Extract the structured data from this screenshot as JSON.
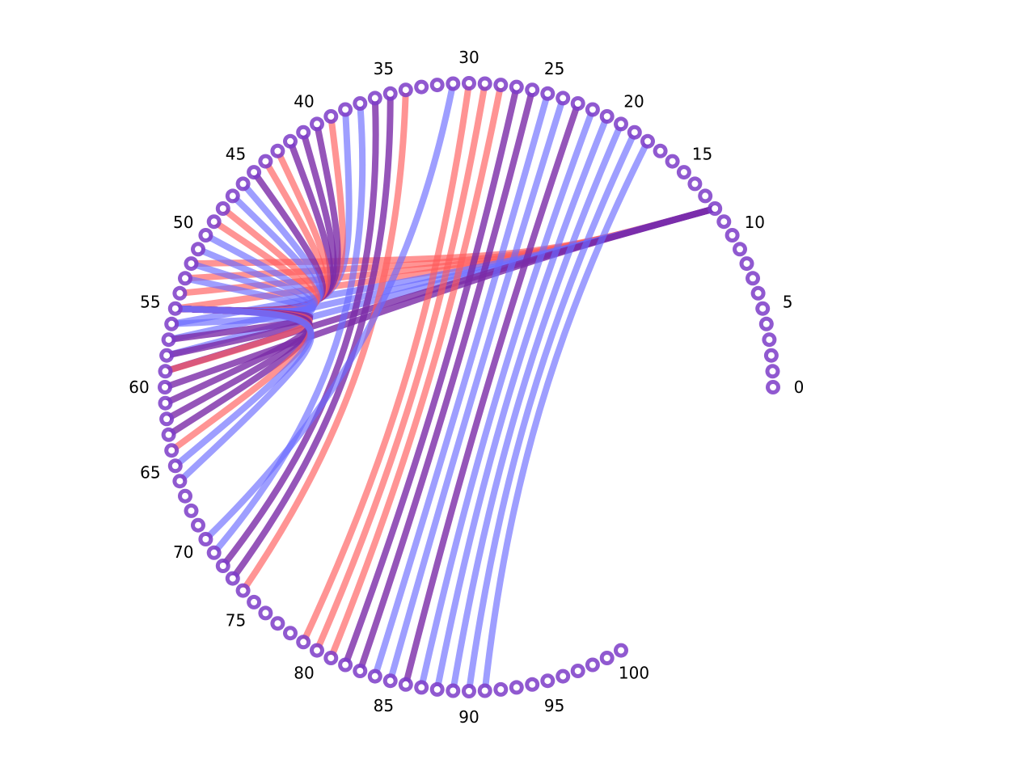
{
  "diagram": {
    "type": "arc-diagram",
    "node_count": 101,
    "tick_labels": [
      "0",
      "5",
      "10",
      "15",
      "20",
      "25",
      "30",
      "35",
      "40",
      "45",
      "50",
      "55",
      "60",
      "65",
      "70",
      "75",
      "80",
      "85",
      "90",
      "95",
      "100"
    ],
    "colors": {
      "node_ring": "#7d3cc8",
      "node_center": "#ffffff",
      "red_link": "#ff5a5a",
      "blue_link": "#6a6aff",
      "mixed_link": "#7a2aa8"
    },
    "links_from_node_12": [
      {
        "target": 52,
        "color": "red"
      },
      {
        "target": 53,
        "color": "red"
      },
      {
        "target": 54,
        "color": "red"
      },
      {
        "target": 55,
        "color": "red"
      },
      {
        "target": 56,
        "color": "blue"
      },
      {
        "target": 57,
        "color": "blue"
      },
      {
        "target": 58,
        "color": "blue"
      },
      {
        "target": 59,
        "color": "purple"
      },
      {
        "target": 60,
        "color": "purple"
      }
    ],
    "links_into_node_55": [
      {
        "source": 38,
        "color": "blue"
      },
      {
        "source": 39,
        "color": "red"
      },
      {
        "source": 40,
        "color": "purple"
      },
      {
        "source": 41,
        "color": "purple"
      },
      {
        "source": 42,
        "color": "purple"
      },
      {
        "source": 43,
        "color": "red"
      },
      {
        "source": 44,
        "color": "red"
      },
      {
        "source": 45,
        "color": "purple"
      },
      {
        "source": 46,
        "color": "blue"
      },
      {
        "source": 47,
        "color": "blue"
      },
      {
        "source": 48,
        "color": "red"
      },
      {
        "source": 49,
        "color": "red"
      },
      {
        "source": 50,
        "color": "blue"
      },
      {
        "source": 51,
        "color": "blue"
      },
      {
        "source": 52,
        "color": "blue"
      },
      {
        "source": 53,
        "color": "blue"
      },
      {
        "source": 56,
        "color": "blue"
      },
      {
        "source": 57,
        "color": "purple"
      },
      {
        "source": 58,
        "color": "purple"
      },
      {
        "source": 59,
        "color": "red"
      },
      {
        "source": 61,
        "color": "purple"
      },
      {
        "source": 62,
        "color": "purple"
      },
      {
        "source": 63,
        "color": "purple"
      },
      {
        "source": 64,
        "color": "red"
      },
      {
        "source": 65,
        "color": "blue"
      },
      {
        "source": 66,
        "color": "blue"
      }
    ],
    "crossing_links": [
      {
        "source": 34,
        "target": 74,
        "color": "red"
      },
      {
        "source": 35,
        "target": 73,
        "color": "purple"
      },
      {
        "source": 36,
        "target": 72,
        "color": "purple"
      },
      {
        "source": 37,
        "target": 71,
        "color": "blue"
      },
      {
        "source": 31,
        "target": 70,
        "color": "blue"
      },
      {
        "source": 30,
        "target": 79,
        "color": "red"
      },
      {
        "source": 29,
        "target": 80,
        "color": "red"
      },
      {
        "source": 28,
        "target": 81,
        "color": "red"
      },
      {
        "source": 27,
        "target": 82,
        "color": "purple"
      },
      {
        "source": 26,
        "target": 83,
        "color": "purple"
      },
      {
        "source": 25,
        "target": 84,
        "color": "blue"
      },
      {
        "source": 24,
        "target": 85,
        "color": "blue"
      },
      {
        "source": 23,
        "target": 86,
        "color": "purple"
      },
      {
        "source": 22,
        "target": 87,
        "color": "blue"
      },
      {
        "source": 21,
        "target": 88,
        "color": "blue"
      },
      {
        "source": 20,
        "target": 89,
        "color": "blue"
      },
      {
        "source": 19,
        "target": 90,
        "color": "blue"
      },
      {
        "source": 18,
        "target": 91,
        "color": "blue"
      }
    ]
  }
}
